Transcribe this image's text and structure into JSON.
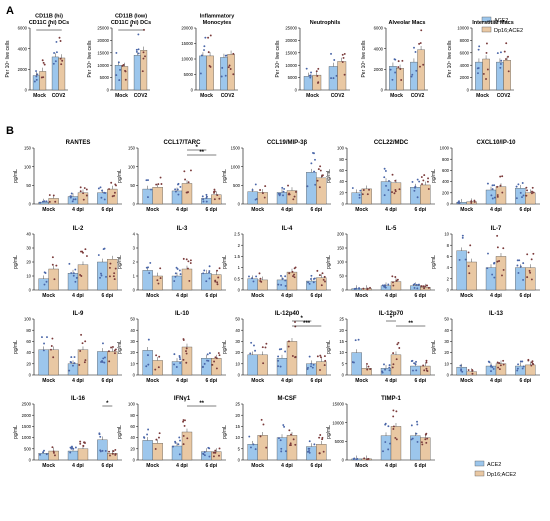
{
  "colors": {
    "ace2": "#9cc6ec",
    "dp16": "#e9c8a3",
    "point": "#7a3a3a"
  },
  "panel_labels": [
    "A",
    "B"
  ],
  "legend": [
    {
      "label": "ACE2",
      "color": "#9cc6ec"
    },
    {
      "label": "Dp16;ACE2",
      "color": "#e9c8a3"
    }
  ],
  "chart_data": [
    {
      "type": "bar",
      "panel": "A",
      "title": "CD11B (hi)\nCD11C (hi) DCs",
      "ylabel": "Per 10⁵ live cells",
      "categories": [
        "Mock",
        "COV2"
      ],
      "ylim": [
        0,
        6000
      ],
      "yticks": [
        0,
        2000,
        4000,
        6000
      ],
      "series": [
        {
          "name": "ACE2",
          "values": [
            1400,
            3200
          ]
        },
        {
          "name": "Dp16;ACE2",
          "values": [
            1800,
            3100
          ]
        }
      ],
      "sig": [
        {
          "from": 0,
          "to": 3,
          "label": "*"
        }
      ]
    },
    {
      "type": "bar",
      "panel": "A",
      "title": "CD11B (low)\nCD11C (hi) DCs",
      "ylabel": "Per 10⁵ live cells",
      "categories": [
        "Mock",
        "COV2"
      ],
      "ylim": [
        0,
        25000
      ],
      "yticks": [
        0,
        5000,
        10000,
        15000,
        20000,
        25000
      ],
      "series": [
        {
          "name": "ACE2",
          "values": [
            10000,
            14000
          ]
        },
        {
          "name": "Dp16;ACE2",
          "values": [
            9500,
            16000
          ]
        }
      ],
      "sig": [
        {
          "from": 0,
          "to": 3,
          "label": "*"
        }
      ]
    },
    {
      "type": "bar",
      "panel": "A",
      "title": "Inflammatory\nMonocytes",
      "ylabel": "",
      "categories": [
        "Mock",
        "COV2"
      ],
      "ylim": [
        0,
        20000
      ],
      "yticks": [
        0,
        5000,
        10000,
        15000,
        20000
      ],
      "series": [
        {
          "name": "ACE2",
          "values": [
            11000,
            10500
          ]
        },
        {
          "name": "Dp16;ACE2",
          "values": [
            11000,
            11500
          ]
        }
      ],
      "sig": []
    },
    {
      "type": "bar",
      "panel": "A",
      "title": "Neutrophils",
      "ylabel": "Per 10⁵ live cells",
      "categories": [
        "Mock",
        "COV2"
      ],
      "ylim": [
        0,
        25000
      ],
      "yticks": [
        0,
        5000,
        10000,
        15000,
        20000,
        25000
      ],
      "series": [
        {
          "name": "ACE2",
          "values": [
            5500,
            9500
          ]
        },
        {
          "name": "Dp16;ACE2",
          "values": [
            6000,
            11500
          ]
        }
      ],
      "sig": []
    },
    {
      "type": "bar",
      "panel": "A",
      "title": "Alveolar Macs",
      "ylabel": "Per 10⁵ live cells",
      "categories": [
        "Mock",
        "COV2"
      ],
      "ylim": [
        0,
        6000
      ],
      "yticks": [
        0,
        2000,
        4000,
        6000
      ],
      "series": [
        {
          "name": "ACE2",
          "values": [
            2300,
            2700
          ]
        },
        {
          "name": "Dp16;ACE2",
          "values": [
            2100,
            3900
          ]
        }
      ],
      "sig": []
    },
    {
      "type": "bar",
      "panel": "A",
      "title": "Interstitial Macs",
      "ylabel": "Per 10⁵ live cells",
      "categories": [
        "Mock",
        "COV2"
      ],
      "ylim": [
        0,
        10000
      ],
      "yticks": [
        0,
        2000,
        4000,
        6000,
        8000,
        10000
      ],
      "series": [
        {
          "name": "ACE2",
          "values": [
            4500,
            4500
          ]
        },
        {
          "name": "Dp16;ACE2",
          "values": [
            5000,
            4800
          ]
        }
      ],
      "sig": []
    },
    {
      "type": "bar",
      "panel": "B",
      "title": "RANTES",
      "ylabel": "pg/mL",
      "categories": [
        "Mock",
        "4 dpi",
        "6 dpi"
      ],
      "ylim": [
        0,
        150
      ],
      "yticks": [
        0,
        50,
        100,
        150
      ],
      "series": [
        {
          "name": "ACE2",
          "values": [
            5,
            20,
            30
          ]
        },
        {
          "name": "Dp16;ACE2",
          "values": [
            15,
            30,
            40
          ]
        }
      ],
      "sig": []
    },
    {
      "type": "bar",
      "panel": "B",
      "title": "CCL17/TARC",
      "ylabel": "pg/mL",
      "categories": [
        "Mock",
        "4 dpi",
        "6 dpi"
      ],
      "ylim": [
        0,
        150
      ],
      "yticks": [
        0,
        50,
        100,
        150
      ],
      "series": [
        {
          "name": "ACE2",
          "values": [
            40,
            35,
            15
          ]
        },
        {
          "name": "Dp16;ACE2",
          "values": [
            45,
            55,
            25
          ]
        }
      ],
      "sig": [
        {
          "from": 3,
          "to": 4,
          "label": "*"
        },
        {
          "from": 3,
          "to": 5,
          "label": "**"
        }
      ]
    },
    {
      "type": "bar",
      "panel": "B",
      "title": "CCL19/MIP-3β",
      "ylabel": "pg/mL",
      "categories": [
        "Mock",
        "4 dpi",
        "6 dpi"
      ],
      "ylim": [
        0,
        1500
      ],
      "yticks": [
        0,
        500,
        1000,
        1500
      ],
      "series": [
        {
          "name": "ACE2",
          "values": [
            330,
            310,
            850
          ]
        },
        {
          "name": "Dp16;ACE2",
          "values": [
            310,
            360,
            700
          ]
        }
      ],
      "sig": []
    },
    {
      "type": "bar",
      "panel": "B",
      "title": "CCL22/MDC",
      "ylabel": "pg/mL",
      "categories": [
        "Mock",
        "4 dpi",
        "6 dpi"
      ],
      "ylim": [
        0,
        100
      ],
      "yticks": [
        0,
        20,
        40,
        60,
        80,
        100
      ],
      "series": [
        {
          "name": "ACE2",
          "values": [
            20,
            40,
            30
          ]
        },
        {
          "name": "Dp16;ACE2",
          "values": [
            27,
            38,
            34
          ]
        }
      ],
      "sig": []
    },
    {
      "type": "bar",
      "panel": "B",
      "title": "CXCL10/IP-10",
      "ylabel": "pg/mL",
      "categories": [
        "Mock",
        "4 dpi",
        "6 dpi"
      ],
      "ylim": [
        0,
        1000
      ],
      "yticks": [
        0,
        200,
        400,
        600,
        800,
        1000
      ],
      "series": [
        {
          "name": "ACE2",
          "values": [
            30,
            250,
            280
          ]
        },
        {
          "name": "Dp16;ACE2",
          "values": [
            40,
            310,
            200
          ]
        }
      ],
      "sig": []
    },
    {
      "type": "bar",
      "panel": "B",
      "title": "IL-2",
      "ylabel": "pg/mL",
      "categories": [
        "Mock",
        "4 dpi",
        "6 dpi"
      ],
      "ylim": [
        0,
        40
      ],
      "yticks": [
        0,
        10,
        20,
        30,
        40
      ],
      "series": [
        {
          "name": "ACE2",
          "values": [
            8,
            12,
            20
          ]
        },
        {
          "name": "Dp16;ACE2",
          "values": [
            15,
            18,
            22
          ]
        }
      ],
      "sig": []
    },
    {
      "type": "bar",
      "panel": "B",
      "title": "IL-3",
      "ylabel": "pg/mL",
      "categories": [
        "Mock",
        "4 dpi",
        "6 dpi"
      ],
      "ylim": [
        0,
        4
      ],
      "yticks": [
        0,
        1,
        2,
        3,
        4
      ],
      "series": [
        {
          "name": "ACE2",
          "values": [
            1.4,
            1.0,
            1.2
          ]
        },
        {
          "name": "Dp16;ACE2",
          "values": [
            1.0,
            1.5,
            1.1
          ]
        }
      ],
      "sig": []
    },
    {
      "type": "bar",
      "panel": "B",
      "title": "IL-4",
      "ylabel": "pg/mL",
      "categories": [
        "Mock",
        "4 dpi",
        "6 dpi"
      ],
      "ylim": [
        0,
        2.5
      ],
      "yticks": [
        0,
        0.5,
        1.0,
        1.5,
        2.0,
        2.5
      ],
      "series": [
        {
          "name": "ACE2",
          "values": [
            0.5,
            0.45,
            0.4
          ]
        },
        {
          "name": "Dp16;ACE2",
          "values": [
            0.45,
            0.8,
            0.55
          ]
        }
      ],
      "sig": []
    },
    {
      "type": "bar",
      "panel": "B",
      "title": "IL-5",
      "ylabel": "pg/mL",
      "categories": [
        "Mock",
        "4 dpi",
        "6 dpi"
      ],
      "ylim": [
        0,
        200
      ],
      "yticks": [
        0,
        50,
        100,
        150,
        200
      ],
      "series": [
        {
          "name": "ACE2",
          "values": [
            5,
            15,
            15
          ]
        },
        {
          "name": "Dp16;ACE2",
          "values": [
            5,
            30,
            10
          ]
        }
      ],
      "sig": []
    },
    {
      "type": "bar",
      "panel": "B",
      "title": "IL-7",
      "ylabel": "pg/mL",
      "categories": [
        "Mock",
        "4 dpi",
        "6 dpi"
      ],
      "ylim": [
        0,
        10
      ],
      "yticks": [
        0,
        2,
        4,
        6,
        8,
        10
      ],
      "series": [
        {
          "name": "ACE2",
          "values": [
            7,
            4,
            4
          ]
        },
        {
          "name": "Dp16;ACE2",
          "values": [
            5,
            6,
            4
          ]
        }
      ],
      "sig": []
    },
    {
      "type": "bar",
      "panel": "B",
      "title": "IL-9",
      "ylabel": "pg/mL",
      "categories": [
        "Mock",
        "4 dpi",
        "6 dpi"
      ],
      "ylim": [
        0,
        100
      ],
      "yticks": [
        0,
        20,
        40,
        60,
        80,
        100
      ],
      "series": [
        {
          "name": "ACE2",
          "values": [
            45,
            20,
            42
          ]
        },
        {
          "name": "Dp16;ACE2",
          "values": [
            45,
            45,
            42
          ]
        }
      ],
      "sig": []
    },
    {
      "type": "bar",
      "panel": "B",
      "title": "IL-10",
      "ylabel": "pg/mL",
      "categories": [
        "Mock",
        "4 dpi",
        "6 dpi"
      ],
      "ylim": [
        0,
        50
      ],
      "yticks": [
        0,
        10,
        20,
        30,
        40,
        50
      ],
      "series": [
        {
          "name": "ACE2",
          "values": [
            22,
            12,
            15
          ]
        },
        {
          "name": "Dp16;ACE2",
          "values": [
            13,
            25,
            15
          ]
        }
      ],
      "sig": []
    },
    {
      "type": "bar",
      "panel": "B",
      "title": "IL-12p40",
      "ylabel": "pg/mL",
      "categories": [
        "Mock",
        "4 dpi",
        "6 dpi"
      ],
      "ylim": [
        0,
        50
      ],
      "yticks": [
        0,
        10,
        20,
        30,
        40,
        50
      ],
      "series": [
        {
          "name": "ACE2",
          "values": [
            18,
            15,
            10
          ]
        },
        {
          "name": "Dp16;ACE2",
          "values": [
            18,
            30,
            12
          ]
        }
      ],
      "sig": [
        {
          "from": 3,
          "to": 4,
          "label": "*"
        },
        {
          "from": 3,
          "to": 5,
          "label": "***"
        }
      ]
    },
    {
      "type": "bar",
      "panel": "B",
      "title": "IL-12p70",
      "ylabel": "pg/mL",
      "categories": [
        "Mock",
        "4 dpi",
        "6 dpi"
      ],
      "ylim": [
        0,
        25
      ],
      "yticks": [
        0,
        5,
        10,
        15,
        20,
        25
      ],
      "series": [
        {
          "name": "ACE2",
          "values": [
            10,
            3,
            4
          ]
        },
        {
          "name": "Dp16;ACE2",
          "values": [
            3,
            9,
            4
          ]
        }
      ],
      "sig": [
        {
          "from": 2,
          "to": 3,
          "label": "*"
        },
        {
          "from": 3,
          "to": 5,
          "label": "**"
        }
      ]
    },
    {
      "type": "bar",
      "panel": "B",
      "title": "IL-13",
      "ylabel": "pg/mL",
      "categories": [
        "Mock",
        "4 dpi",
        "6 dpi"
      ],
      "ylim": [
        0,
        50
      ],
      "yticks": [
        0,
        10,
        20,
        30,
        40,
        50
      ],
      "series": [
        {
          "name": "ACE2",
          "values": [
            7,
            8,
            8
          ]
        },
        {
          "name": "Dp16;ACE2",
          "values": [
            3,
            10,
            9
          ]
        }
      ],
      "sig": []
    },
    {
      "type": "bar",
      "panel": "B",
      "title": "IL-16",
      "ylabel": "pg/mL",
      "categories": [
        "Mock",
        "4 dpi",
        "6 dpi"
      ],
      "ylim": [
        0,
        2500
      ],
      "yticks": [
        0,
        500,
        1000,
        1500,
        2000,
        2500
      ],
      "series": [
        {
          "name": "ACE2",
          "values": [
            300,
            400,
            900
          ]
        },
        {
          "name": "Dp16;ACE2",
          "values": [
            400,
            500,
            300
          ]
        }
      ],
      "sig": [
        {
          "from": 4,
          "to": 5,
          "label": "*"
        }
      ]
    },
    {
      "type": "bar",
      "panel": "B",
      "title": "IFNγ1",
      "ylabel": "pg/mL",
      "categories": [
        "Mock",
        "4 dpi",
        "6 dpi"
      ],
      "ylim": [
        0,
        100
      ],
      "yticks": [
        0,
        20,
        40,
        60,
        80,
        100
      ],
      "series": [
        {
          "name": "ACE2",
          "values": [
            35,
            25,
            15
          ]
        },
        {
          "name": "Dp16;ACE2",
          "values": [
            30,
            50,
            15
          ]
        }
      ],
      "sig": [
        {
          "from": 3,
          "to": 5,
          "label": "**"
        }
      ]
    },
    {
      "type": "bar",
      "panel": "B",
      "title": "M-CSF",
      "ylabel": "pg/mL",
      "categories": [
        "Mock",
        "4 dpi",
        "6 dpi"
      ],
      "ylim": [
        0,
        25
      ],
      "yticks": [
        0,
        5,
        10,
        15,
        20,
        25
      ],
      "series": [
        {
          "name": "ACE2",
          "values": [
            7,
            10,
            6
          ]
        },
        {
          "name": "Dp16;ACE2",
          "values": [
            11,
            11,
            7
          ]
        }
      ],
      "sig": []
    },
    {
      "type": "bar",
      "panel": "B",
      "title": "TIMP-1",
      "ylabel": "pg/mL",
      "categories": [
        "Mock",
        "4 dpi",
        "6 dpi"
      ],
      "ylim": [
        0,
        15000
      ],
      "yticks": [
        0,
        5000,
        10000,
        15000
      ],
      "series": [
        {
          "name": "ACE2",
          "values": [
            300,
            6500,
            6500
          ]
        },
        {
          "name": "Dp16;ACE2",
          "values": [
            300,
            9000,
            6000
          ]
        }
      ],
      "sig": []
    }
  ]
}
